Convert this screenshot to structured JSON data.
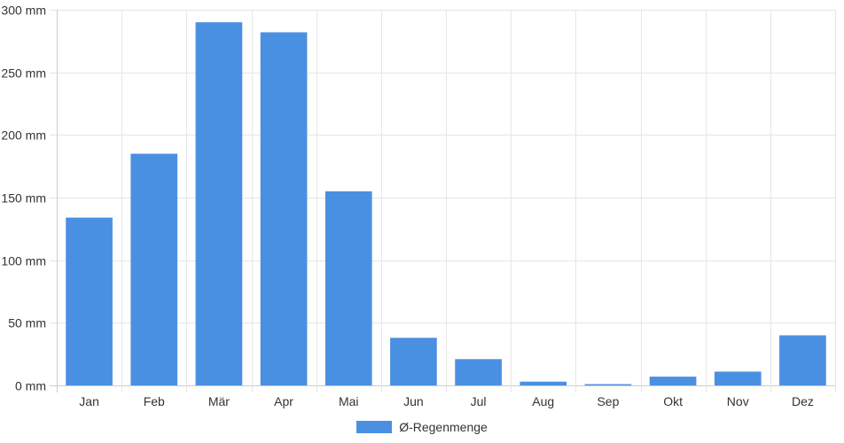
{
  "chart_data": {
    "type": "bar",
    "categories": [
      "Jan",
      "Feb",
      "Mär",
      "Apr",
      "Mai",
      "Jun",
      "Jul",
      "Aug",
      "Sep",
      "Okt",
      "Nov",
      "Dez"
    ],
    "series": [
      {
        "name": "Ø-Regenmenge",
        "values": [
          134,
          185,
          290,
          282,
          155,
          38,
          21,
          3,
          1,
          7,
          11,
          40
        ]
      }
    ],
    "y_unit": "mm",
    "ylim": [
      0,
      300
    ],
    "y_ticks": [
      0,
      50,
      100,
      150,
      200,
      250,
      300
    ],
    "y_tick_labels": [
      "0 mm",
      "50 mm",
      "100 mm",
      "150 mm",
      "200 mm",
      "250 mm",
      "300 mm"
    ],
    "grid": true,
    "legend_position": "bottom",
    "color": "#4a90e2"
  }
}
